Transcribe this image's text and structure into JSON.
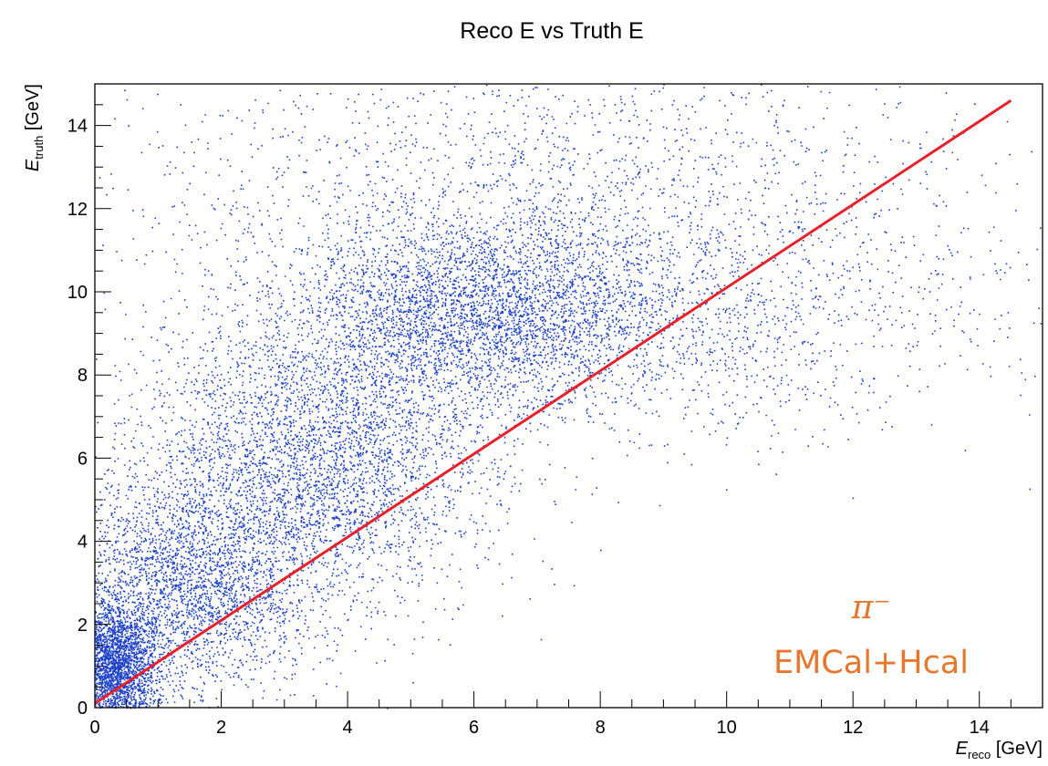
{
  "chart_data": {
    "type": "scatter",
    "title": "Reco E vs Truth E",
    "xlabel": {
      "symbol": "E",
      "subscript": "reco",
      "unit": "[GeV]"
    },
    "ylabel": {
      "symbol": "E",
      "subscript": "truth",
      "unit": "[GeV]"
    },
    "xlim": [
      0,
      15
    ],
    "ylim": [
      0,
      15
    ],
    "x_ticks": [
      "0",
      "2",
      "4",
      "6",
      "8",
      "10",
      "12",
      "14"
    ],
    "y_ticks": [
      "0",
      "2",
      "4",
      "6",
      "8",
      "10",
      "12",
      "14"
    ],
    "grid": false,
    "point_color": "#1a3fc8",
    "line_color": "#e8202a",
    "reference_line": {
      "x": [
        0,
        14.5
      ],
      "y": [
        0.1,
        14.6
      ]
    },
    "density_clusters": [
      {
        "x": 0.3,
        "y": 1.0,
        "sx": 0.35,
        "sy": 0.8,
        "weight": 0.17
      },
      {
        "x": 1.5,
        "y": 3.0,
        "sx": 1.0,
        "sy": 1.3,
        "weight": 0.17
      },
      {
        "x": 3.5,
        "y": 6.0,
        "sx": 1.4,
        "sy": 1.7,
        "weight": 0.23
      },
      {
        "x": 6.0,
        "y": 9.5,
        "sx": 1.5,
        "sy": 1.2,
        "weight": 0.23
      },
      {
        "x": 7.0,
        "y": 12.5,
        "sx": 3.5,
        "sy": 2.2,
        "weight": 0.12
      },
      {
        "x": 9.5,
        "y": 9.5,
        "sx": 2.2,
        "sy": 1.6,
        "weight": 0.08
      }
    ],
    "annotations": [
      "π⁻",
      "EMCal+Hcal"
    ]
  }
}
